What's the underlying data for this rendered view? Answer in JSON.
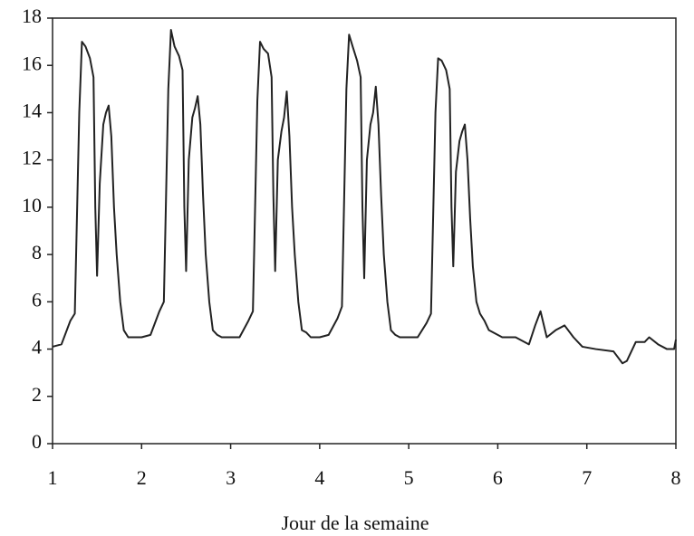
{
  "chart_data": {
    "type": "line",
    "xlabel": "Jour de la semaine",
    "x": [
      1,
      1.1,
      1.2,
      1.25,
      1.3,
      1.33,
      1.37,
      1.42,
      1.46,
      1.48,
      1.5,
      1.53,
      1.57,
      1.6,
      1.63,
      1.66,
      1.69,
      1.72,
      1.76,
      1.8,
      1.85,
      1.9,
      2,
      2.1,
      2.2,
      2.25,
      2.3,
      2.33,
      2.37,
      2.42,
      2.46,
      2.48,
      2.5,
      2.53,
      2.57,
      2.6,
      2.63,
      2.66,
      2.69,
      2.72,
      2.76,
      2.8,
      2.85,
      2.9,
      3,
      3.1,
      3.2,
      3.25,
      3.3,
      3.33,
      3.37,
      3.42,
      3.46,
      3.48,
      3.5,
      3.53,
      3.57,
      3.6,
      3.63,
      3.66,
      3.69,
      3.72,
      3.76,
      3.8,
      3.85,
      3.9,
      4,
      4.1,
      4.2,
      4.25,
      4.3,
      4.33,
      4.37,
      4.42,
      4.46,
      4.48,
      4.5,
      4.53,
      4.57,
      4.6,
      4.63,
      4.66,
      4.69,
      4.72,
      4.76,
      4.8,
      4.85,
      4.9,
      5,
      5.1,
      5.2,
      5.25,
      5.3,
      5.33,
      5.37,
      5.42,
      5.46,
      5.48,
      5.5,
      5.53,
      5.57,
      5.6,
      5.63,
      5.66,
      5.69,
      5.72,
      5.76,
      5.8,
      5.85,
      5.9,
      5.95,
      6.05,
      6.2,
      6.35,
      6.42,
      6.48,
      6.55,
      6.65,
      6.75,
      6.85,
      6.95,
      7.1,
      7.3,
      7.4,
      7.45,
      7.55,
      7.65,
      7.7,
      7.8,
      7.9,
      7.98,
      8
    ],
    "series": [
      {
        "color": "#222222",
        "values": [
          4.1,
          4.2,
          5.2,
          5.5,
          14,
          17,
          16.8,
          16.3,
          15.5,
          10,
          7.1,
          11,
          13.5,
          14,
          14.3,
          13,
          10,
          8,
          6,
          4.8,
          4.5,
          4.5,
          4.5,
          4.6,
          5.6,
          6,
          15,
          17.5,
          16.8,
          16.4,
          15.8,
          10,
          7.3,
          12,
          13.8,
          14.2,
          14.7,
          13.5,
          10.5,
          8,
          6,
          4.8,
          4.6,
          4.5,
          4.5,
          4.5,
          5.2,
          5.6,
          14.5,
          17,
          16.7,
          16.5,
          15.5,
          10.5,
          7.3,
          12,
          13.2,
          13.8,
          14.9,
          13,
          10,
          8,
          6,
          4.8,
          4.7,
          4.5,
          4.5,
          4.6,
          5.3,
          5.8,
          15,
          17.3,
          16.8,
          16.2,
          15.5,
          10,
          7,
          12,
          13.5,
          14,
          15.1,
          13.5,
          10.5,
          8,
          6,
          4.8,
          4.6,
          4.5,
          4.5,
          4.5,
          5.1,
          5.5,
          14,
          16.3,
          16.2,
          15.8,
          15,
          10,
          7.5,
          11.5,
          12.8,
          13.2,
          13.5,
          12,
          9.5,
          7.5,
          6,
          5.5,
          5.2,
          4.8,
          4.7,
          4.5,
          4.5,
          4.2,
          5,
          5.6,
          4.5,
          4.8,
          5,
          4.5,
          4.1,
          4,
          3.9,
          3.4,
          3.5,
          4.3,
          4.3,
          4.5,
          4.2,
          4,
          4,
          4.4
        ]
      }
    ],
    "xlim": [
      1,
      8
    ],
    "xticks": [
      1,
      2,
      3,
      4,
      5,
      6,
      7,
      8
    ],
    "ylim": [
      0,
      18
    ],
    "yticks": [
      0,
      2,
      4,
      6,
      8,
      10,
      12,
      14,
      16,
      18
    ]
  }
}
